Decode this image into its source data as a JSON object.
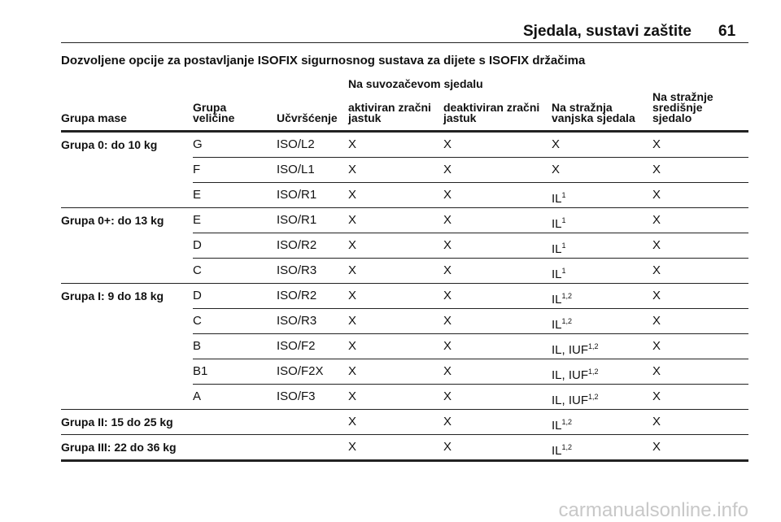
{
  "header": {
    "section": "Sjedala, sustavi zaštite",
    "page": "61"
  },
  "title": "Dozvoljene opcije za postavljanje ISOFIX sigurnosnog sustava za dijete s ISOFIX držačima",
  "table": {
    "group_header": "Na suvozačevom sjedalu",
    "columns": [
      "Grupa mase",
      "Grupa\nveličine",
      "Učvršćenje",
      "aktiviran zračni\njastuk",
      "deaktiviran zračni\njastuk",
      "Na stražnja\nvanjska sjedala",
      "Na stražnje\nsredišnje\nsjedalo"
    ],
    "groups": [
      {
        "name": "Grupa 0: do 10 kg",
        "rows": [
          [
            "G",
            "ISO/L2",
            "X",
            "X",
            "X",
            "X"
          ],
          [
            "F",
            "ISO/L1",
            "X",
            "X",
            "X",
            "X"
          ],
          [
            "E",
            "ISO/R1",
            "X",
            "X",
            {
              "text": "IL",
              "sup": "1"
            },
            "X"
          ]
        ]
      },
      {
        "name": "Grupa 0+: do 13 kg",
        "rows": [
          [
            "E",
            "ISO/R1",
            "X",
            "X",
            {
              "text": "IL",
              "sup": "1"
            },
            "X"
          ],
          [
            "D",
            "ISO/R2",
            "X",
            "X",
            {
              "text": "IL",
              "sup": "1"
            },
            "X"
          ],
          [
            "C",
            "ISO/R3",
            "X",
            "X",
            {
              "text": "IL",
              "sup": "1"
            },
            "X"
          ]
        ]
      },
      {
        "name": "Grupa I: 9 do 18 kg",
        "rows": [
          [
            "D",
            "ISO/R2",
            "X",
            "X",
            {
              "text": "IL",
              "sup": "1,2"
            },
            "X"
          ],
          [
            "C",
            "ISO/R3",
            "X",
            "X",
            {
              "text": "IL",
              "sup": "1,2"
            },
            "X"
          ],
          [
            "B",
            "ISO/F2",
            "X",
            "X",
            {
              "text": "IL, IUF",
              "sup": "1,2"
            },
            "X"
          ],
          [
            "B1",
            "ISO/F2X",
            "X",
            "X",
            {
              "text": "IL, IUF",
              "sup": "1,2"
            },
            "X"
          ],
          [
            "A",
            "ISO/F3",
            "X",
            "X",
            {
              "text": "IL, IUF",
              "sup": "1,2"
            },
            "X"
          ]
        ]
      },
      {
        "name": "Grupa II: 15 do 25 kg",
        "rows": [
          [
            null,
            null,
            "X",
            "X",
            {
              "text": "IL",
              "sup": "1,2"
            },
            "X"
          ]
        ]
      },
      {
        "name": "Grupa III: 22 do 36 kg",
        "rows": [
          [
            null,
            null,
            "X",
            "X",
            {
              "text": "IL",
              "sup": "1,2"
            },
            "X"
          ]
        ]
      }
    ]
  },
  "watermark": "carmanualsonline.info"
}
